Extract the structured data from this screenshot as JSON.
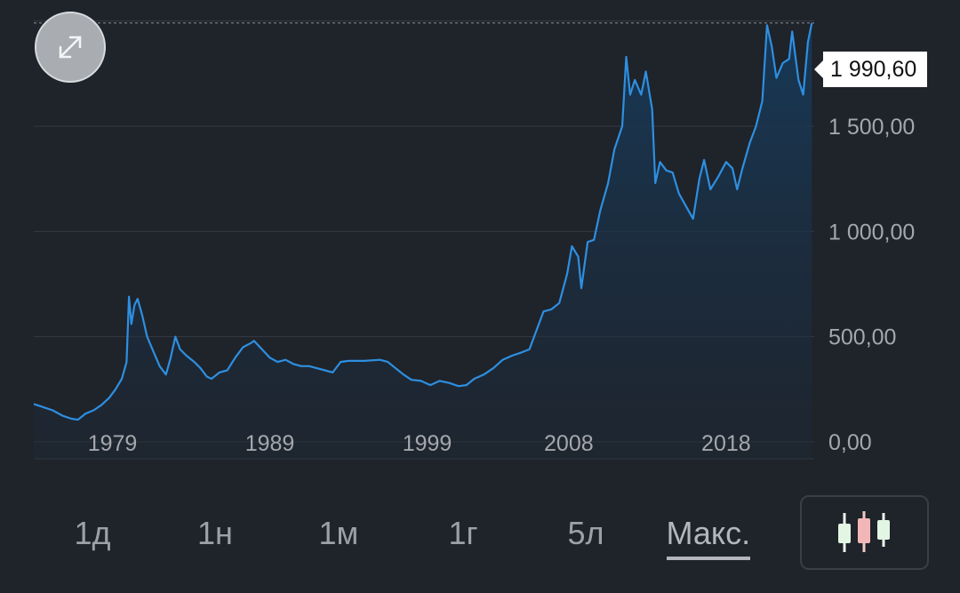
{
  "chart_data": {
    "type": "area",
    "x_ticks": [
      "1979",
      "1989",
      "1999",
      "2008",
      "2018"
    ],
    "y_ticks": [
      "0,00",
      "500,00",
      "1 000,00",
      "1 500,00"
    ],
    "ylim": [
      0,
      2100
    ],
    "xlim": [
      1974.0,
      2023.6
    ],
    "current_value_label": "1 990,60",
    "current_value": 1990.6,
    "line_color": "#2e8fe0",
    "grid": true,
    "series": [
      {
        "points": [
          [
            1974.0,
            180
          ],
          [
            1974.6,
            165
          ],
          [
            1975.2,
            150
          ],
          [
            1975.8,
            125
          ],
          [
            1976.4,
            110
          ],
          [
            1976.8,
            105
          ],
          [
            1977.3,
            135
          ],
          [
            1977.8,
            150
          ],
          [
            1978.3,
            175
          ],
          [
            1978.8,
            210
          ],
          [
            1979.2,
            250
          ],
          [
            1979.6,
            300
          ],
          [
            1979.9,
            380
          ],
          [
            1980.05,
            690
          ],
          [
            1980.2,
            560
          ],
          [
            1980.4,
            650
          ],
          [
            1980.6,
            680
          ],
          [
            1980.9,
            600
          ],
          [
            1981.2,
            500
          ],
          [
            1981.6,
            430
          ],
          [
            1982.0,
            360
          ],
          [
            1982.4,
            320
          ],
          [
            1982.7,
            400
          ],
          [
            1983.0,
            500
          ],
          [
            1983.3,
            440
          ],
          [
            1983.7,
            410
          ],
          [
            1984.2,
            380
          ],
          [
            1984.6,
            350
          ],
          [
            1985.0,
            310
          ],
          [
            1985.3,
            300
          ],
          [
            1985.8,
            330
          ],
          [
            1986.3,
            340
          ],
          [
            1986.8,
            400
          ],
          [
            1987.3,
            450
          ],
          [
            1987.8,
            470
          ],
          [
            1988.0,
            480
          ],
          [
            1988.5,
            440
          ],
          [
            1989.0,
            400
          ],
          [
            1989.5,
            380
          ],
          [
            1990.0,
            390
          ],
          [
            1990.5,
            370
          ],
          [
            1991.0,
            360
          ],
          [
            1991.5,
            360
          ],
          [
            1992.0,
            350
          ],
          [
            1992.5,
            340
          ],
          [
            1993.0,
            330
          ],
          [
            1993.5,
            380
          ],
          [
            1994.0,
            385
          ],
          [
            1995.0,
            385
          ],
          [
            1996.0,
            390
          ],
          [
            1996.5,
            380
          ],
          [
            1997.0,
            350
          ],
          [
            1997.5,
            320
          ],
          [
            1998.0,
            295
          ],
          [
            1998.6,
            290
          ],
          [
            1999.2,
            270
          ],
          [
            1999.8,
            290
          ],
          [
            2000.4,
            280
          ],
          [
            2001.0,
            265
          ],
          [
            2001.5,
            270
          ],
          [
            2002.0,
            300
          ],
          [
            2002.6,
            320
          ],
          [
            2003.2,
            350
          ],
          [
            2003.8,
            390
          ],
          [
            2004.4,
            410
          ],
          [
            2005.0,
            425
          ],
          [
            2005.5,
            440
          ],
          [
            2005.9,
            520
          ],
          [
            2006.4,
            620
          ],
          [
            2006.9,
            630
          ],
          [
            2007.4,
            660
          ],
          [
            2007.9,
            800
          ],
          [
            2008.2,
            930
          ],
          [
            2008.6,
            880
          ],
          [
            2008.8,
            730
          ],
          [
            2009.2,
            950
          ],
          [
            2009.6,
            960
          ],
          [
            2010.0,
            1100
          ],
          [
            2010.5,
            1230
          ],
          [
            2010.9,
            1390
          ],
          [
            2011.4,
            1500
          ],
          [
            2011.65,
            1830
          ],
          [
            2011.9,
            1650
          ],
          [
            2012.2,
            1720
          ],
          [
            2012.6,
            1650
          ],
          [
            2012.9,
            1760
          ],
          [
            2013.3,
            1580
          ],
          [
            2013.5,
            1230
          ],
          [
            2013.8,
            1330
          ],
          [
            2014.2,
            1290
          ],
          [
            2014.6,
            1280
          ],
          [
            2015.0,
            1180
          ],
          [
            2015.6,
            1100
          ],
          [
            2015.9,
            1060
          ],
          [
            2016.3,
            1250
          ],
          [
            2016.6,
            1340
          ],
          [
            2017.0,
            1200
          ],
          [
            2017.5,
            1260
          ],
          [
            2018.0,
            1330
          ],
          [
            2018.4,
            1300
          ],
          [
            2018.7,
            1200
          ],
          [
            2019.0,
            1290
          ],
          [
            2019.5,
            1420
          ],
          [
            2019.9,
            1500
          ],
          [
            2020.3,
            1620
          ],
          [
            2020.6,
            1980
          ],
          [
            2020.9,
            1880
          ],
          [
            2021.2,
            1730
          ],
          [
            2021.6,
            1800
          ],
          [
            2022.0,
            1820
          ],
          [
            2022.2,
            1950
          ],
          [
            2022.6,
            1720
          ],
          [
            2022.9,
            1650
          ],
          [
            2023.2,
            1900
          ],
          [
            2023.45,
            1990.6
          ]
        ]
      }
    ]
  },
  "time_ranges": [
    "1д",
    "1н",
    "1м",
    "1г",
    "5л",
    "Макс."
  ],
  "active_range": "Макс.",
  "icons": {
    "expand": "expand-arrows-icon",
    "chart_type": "candlestick-icon"
  }
}
